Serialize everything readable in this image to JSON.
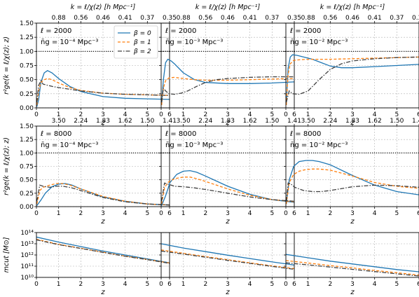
{
  "figure": {
    "top_axis_label": "k = ℓ/χ(z) [h Mpc⁻¹]",
    "row_ylabel_ratio": "r²ge(k = ℓ/χ(z); z)",
    "row_ylabel_mass": "mcut [M⊙]",
    "xlabel": "z",
    "legend": [
      "β = 0",
      "β = 1",
      "β = 2"
    ],
    "colors": {
      "beta0": "#1f77b4",
      "beta1": "#ff7f0e",
      "beta2": "#404040"
    }
  },
  "chart_data": [
    {
      "type": "line",
      "panel": "row1-col1",
      "label_ell": "ℓ = 2000",
      "label_ng": "n̄g = 10⁻⁴ Mpc⁻³",
      "xlim": [
        0,
        6
      ],
      "ylim": [
        0,
        1.5
      ],
      "x_ticks": [
        "0",
        "1",
        "2",
        "3",
        "4",
        "5",
        "6"
      ],
      "y_ticks": [
        "0.00",
        "0.25",
        "0.50",
        "0.75",
        "1.00",
        "1.25",
        "1.50"
      ],
      "top_ticks": [
        "0.88",
        "0.56",
        "0.46",
        "0.41",
        "0.37",
        "0.35"
      ],
      "reference_line": 1.0,
      "grid": true,
      "series": [
        {
          "name": "β = 0",
          "x": [
            0.02,
            0.1,
            0.2,
            0.35,
            0.5,
            0.7,
            1.0,
            1.5,
            2,
            3,
            4,
            5,
            6
          ],
          "y": [
            0.02,
            0.15,
            0.45,
            0.62,
            0.66,
            0.62,
            0.52,
            0.38,
            0.29,
            0.2,
            0.17,
            0.16,
            0.15
          ]
        },
        {
          "name": "β = 1",
          "x": [
            0.02,
            0.1,
            0.2,
            0.35,
            0.5,
            0.7,
            1.0,
            1.5,
            2,
            3,
            4,
            5,
            6
          ],
          "y": [
            0.05,
            0.3,
            0.45,
            0.5,
            0.52,
            0.5,
            0.44,
            0.36,
            0.31,
            0.26,
            0.24,
            0.23,
            0.22
          ]
        },
        {
          "name": "β = 2",
          "x": [
            0.02,
            0.1,
            0.2,
            0.3,
            0.5,
            0.7,
            1.0,
            1.5,
            2,
            3,
            4,
            5,
            6
          ],
          "y": [
            0.1,
            0.4,
            0.48,
            0.42,
            0.4,
            0.38,
            0.36,
            0.33,
            0.3,
            0.26,
            0.24,
            0.23,
            0.22
          ]
        }
      ]
    },
    {
      "type": "line",
      "panel": "row1-col2",
      "label_ell": "ℓ = 2000",
      "label_ng": "n̄g = 10⁻³ Mpc⁻³",
      "xlim": [
        0,
        6
      ],
      "ylim": [
        0,
        1.5
      ],
      "x_ticks": [
        "0",
        "1",
        "2",
        "3",
        "4",
        "5",
        "6"
      ],
      "top_ticks": [
        "0.88",
        "0.56",
        "0.46",
        "0.41",
        "0.37",
        "0.35"
      ],
      "reference_line": 1.0,
      "grid": true,
      "series": [
        {
          "name": "β = 0",
          "x": [
            0.02,
            0.1,
            0.2,
            0.3,
            0.45,
            0.6,
            0.8,
            1.0,
            1.5,
            2,
            3,
            4,
            5,
            6
          ],
          "y": [
            0.05,
            0.5,
            0.8,
            0.86,
            0.83,
            0.78,
            0.7,
            0.62,
            0.5,
            0.45,
            0.43,
            0.43,
            0.44,
            0.46
          ]
        },
        {
          "name": "β = 1",
          "x": [
            0.02,
            0.1,
            0.2,
            0.35,
            0.6,
            1.0,
            1.5,
            2,
            3,
            4,
            5,
            6
          ],
          "y": [
            0.05,
            0.35,
            0.48,
            0.53,
            0.54,
            0.52,
            0.5,
            0.49,
            0.49,
            0.5,
            0.51,
            0.52
          ]
        },
        {
          "name": "β = 2",
          "x": [
            0.02,
            0.1,
            0.2,
            0.35,
            0.6,
            0.9,
            1.2,
            1.6,
            2,
            2.5,
            3,
            4,
            5,
            6
          ],
          "y": [
            0.1,
            0.35,
            0.3,
            0.25,
            0.24,
            0.26,
            0.3,
            0.38,
            0.45,
            0.5,
            0.52,
            0.54,
            0.55,
            0.55
          ]
        }
      ]
    },
    {
      "type": "line",
      "panel": "row1-col3",
      "label_ell": "ℓ = 2000",
      "label_ng": "n̄g = 10⁻² Mpc⁻³",
      "xlim": [
        0,
        6
      ],
      "ylim": [
        0,
        1.5
      ],
      "x_ticks": [
        "0",
        "1",
        "2",
        "3",
        "4",
        "5",
        "6"
      ],
      "top_ticks": [
        "0.88",
        "0.56",
        "0.46",
        "0.41",
        "0.37",
        "0.35"
      ],
      "reference_line": 1.0,
      "grid": true,
      "series": [
        {
          "name": "β = 0",
          "x": [
            0.02,
            0.1,
            0.2,
            0.3,
            0.5,
            0.8,
            1.2,
            1.6,
            2,
            2.5,
            3,
            4,
            5,
            6
          ],
          "y": [
            0.05,
            0.7,
            0.9,
            0.94,
            0.93,
            0.9,
            0.86,
            0.8,
            0.74,
            0.71,
            0.71,
            0.73,
            0.75,
            0.77
          ]
        },
        {
          "name": "β = 1",
          "x": [
            0.02,
            0.1,
            0.2,
            0.35,
            0.6,
            1.0,
            2,
            3,
            4,
            5,
            6
          ],
          "y": [
            0.05,
            0.6,
            0.78,
            0.84,
            0.85,
            0.86,
            0.86,
            0.87,
            0.88,
            0.89,
            0.9
          ]
        },
        {
          "name": "β = 2",
          "x": [
            0.02,
            0.15,
            0.3,
            0.6,
            1.0,
            1.5,
            2,
            2.5,
            3,
            4,
            5,
            6
          ],
          "y": [
            0.1,
            0.3,
            0.25,
            0.24,
            0.3,
            0.5,
            0.68,
            0.78,
            0.83,
            0.87,
            0.89,
            0.9
          ]
        }
      ]
    },
    {
      "type": "line",
      "panel": "row2-col1",
      "label_ell": "ℓ = 8000",
      "label_ng": "n̄g = 10⁻⁴ Mpc⁻³",
      "xlim": [
        0,
        6
      ],
      "ylim": [
        0,
        1.5
      ],
      "x_ticks": [
        "0",
        "1",
        "2",
        "3",
        "4",
        "5",
        "6"
      ],
      "y_ticks": [
        "0.00",
        "0.25",
        "0.50",
        "0.75",
        "1.00",
        "1.25",
        "1.50"
      ],
      "top_ticks": [
        "3.50",
        "2.24",
        "1.83",
        "1.62",
        "1.50",
        "1.41"
      ],
      "reference_line": 1.0,
      "grid": true,
      "series": [
        {
          "name": "β = 0",
          "x": [
            0.02,
            0.2,
            0.4,
            0.7,
            1.0,
            1.3,
            1.6,
            2,
            3,
            4,
            5,
            6
          ],
          "y": [
            0.02,
            0.12,
            0.25,
            0.37,
            0.42,
            0.43,
            0.4,
            0.33,
            0.18,
            0.1,
            0.05,
            0.03
          ]
        },
        {
          "name": "β = 1",
          "x": [
            0.02,
            0.15,
            0.3,
            0.6,
            0.9,
            1.2,
            1.6,
            2,
            3,
            4,
            5,
            6
          ],
          "y": [
            0.05,
            0.3,
            0.36,
            0.4,
            0.43,
            0.43,
            0.39,
            0.33,
            0.19,
            0.1,
            0.05,
            0.03
          ]
        },
        {
          "name": "β = 2",
          "x": [
            0.02,
            0.15,
            0.3,
            0.6,
            0.9,
            1.2,
            1.6,
            2,
            3,
            4,
            5,
            6
          ],
          "y": [
            0.1,
            0.4,
            0.38,
            0.36,
            0.38,
            0.38,
            0.35,
            0.3,
            0.17,
            0.09,
            0.05,
            0.03
          ]
        }
      ]
    },
    {
      "type": "line",
      "panel": "row2-col2",
      "label_ell": "ℓ = 8000",
      "label_ng": "n̄g = 10⁻³ Mpc⁻³",
      "xlim": [
        0,
        6
      ],
      "ylim": [
        0,
        1.5
      ],
      "x_ticks": [
        "0",
        "1",
        "2",
        "3",
        "4",
        "5",
        "6"
      ],
      "top_ticks": [
        "3.50",
        "2.24",
        "1.83",
        "1.62",
        "1.50",
        "1.41"
      ],
      "reference_line": 1.0,
      "grid": true,
      "series": [
        {
          "name": "β = 0",
          "x": [
            0.02,
            0.2,
            0.4,
            0.7,
            1.0,
            1.3,
            1.6,
            2,
            3,
            4,
            5,
            6
          ],
          "y": [
            0.02,
            0.2,
            0.45,
            0.6,
            0.66,
            0.67,
            0.64,
            0.57,
            0.38,
            0.23,
            0.13,
            0.08
          ]
        },
        {
          "name": "β = 1",
          "x": [
            0.02,
            0.15,
            0.3,
            0.6,
            1.0,
            1.3,
            1.6,
            2,
            3,
            4,
            5,
            6
          ],
          "y": [
            0.05,
            0.35,
            0.45,
            0.52,
            0.55,
            0.55,
            0.52,
            0.47,
            0.33,
            0.21,
            0.13,
            0.09
          ]
        },
        {
          "name": "β = 2",
          "x": [
            0.02,
            0.15,
            0.3,
            0.6,
            1.0,
            1.5,
            2,
            3,
            4,
            5,
            6
          ],
          "y": [
            0.1,
            0.44,
            0.42,
            0.38,
            0.37,
            0.35,
            0.32,
            0.25,
            0.18,
            0.13,
            0.1
          ]
        }
      ]
    },
    {
      "type": "line",
      "panel": "row2-col3",
      "label_ell": "ℓ = 8000",
      "label_ng": "n̄g = 10⁻² Mpc⁻³",
      "xlim": [
        0,
        6
      ],
      "ylim": [
        0,
        1.5
      ],
      "x_ticks": [
        "0",
        "1",
        "2",
        "3",
        "4",
        "5",
        "6"
      ],
      "top_ticks": [
        "3.50",
        "2.24",
        "1.83",
        "1.62",
        "1.50",
        "1.41"
      ],
      "reference_line": 1.0,
      "grid": true,
      "series": [
        {
          "name": "β = 0",
          "x": [
            0.02,
            0.15,
            0.35,
            0.6,
            0.9,
            1.2,
            1.5,
            2,
            3,
            4,
            5,
            6
          ],
          "y": [
            0.05,
            0.5,
            0.75,
            0.84,
            0.86,
            0.86,
            0.84,
            0.78,
            0.58,
            0.4,
            0.28,
            0.22
          ]
        },
        {
          "name": "β = 1",
          "x": [
            0.02,
            0.15,
            0.35,
            0.6,
            0.9,
            1.2,
            1.5,
            2,
            3,
            4,
            5,
            6
          ],
          "y": [
            0.05,
            0.45,
            0.6,
            0.66,
            0.69,
            0.7,
            0.7,
            0.68,
            0.57,
            0.45,
            0.38,
            0.34
          ]
        },
        {
          "name": "β = 2",
          "x": [
            0.02,
            0.1,
            0.2,
            0.4,
            0.8,
            1.2,
            1.6,
            2,
            3,
            4,
            5,
            6
          ],
          "y": [
            0.1,
            0.44,
            0.43,
            0.36,
            0.3,
            0.28,
            0.28,
            0.3,
            0.37,
            0.4,
            0.39,
            0.36
          ]
        }
      ]
    },
    {
      "type": "line",
      "panel": "row3-col1",
      "xlim": [
        0,
        6
      ],
      "ylim": [
        10,
        14
      ],
      "yscale": "log10",
      "x_ticks": [
        "0",
        "1",
        "2",
        "3",
        "4",
        "5",
        "6"
      ],
      "y_ticks": [
        "10¹⁰",
        "10¹¹",
        "10¹²",
        "10¹³",
        "10¹⁴"
      ],
      "grid": true,
      "series": [
        {
          "name": "β = 0",
          "x": [
            0,
            1,
            2,
            3,
            4,
            5,
            6
          ],
          "y": [
            13.6,
            13.15,
            12.75,
            12.35,
            12.0,
            11.65,
            11.3
          ]
        },
        {
          "name": "β = 1",
          "x": [
            0,
            1,
            2,
            3,
            4,
            5,
            6
          ],
          "y": [
            13.4,
            12.95,
            12.6,
            12.25,
            11.9,
            11.6,
            11.28
          ]
        },
        {
          "name": "β = 2",
          "x": [
            0,
            1,
            2,
            3,
            4,
            5,
            6
          ],
          "y": [
            13.35,
            12.92,
            12.58,
            12.23,
            11.88,
            11.58,
            11.25
          ]
        }
      ]
    },
    {
      "type": "line",
      "panel": "row3-col2",
      "xlim": [
        0,
        6
      ],
      "ylim": [
        10,
        14
      ],
      "yscale": "log10",
      "x_ticks": [
        "0",
        "1",
        "2",
        "3",
        "4",
        "5",
        "6"
      ],
      "grid": true,
      "series": [
        {
          "name": "β = 0",
          "x": [
            0,
            1,
            2,
            3,
            4,
            5,
            6
          ],
          "y": [
            13.0,
            12.62,
            12.3,
            11.98,
            11.68,
            11.38,
            11.1
          ]
        },
        {
          "name": "β = 1",
          "x": [
            0,
            1,
            2,
            3,
            4,
            5,
            6
          ],
          "y": [
            12.45,
            12.15,
            11.85,
            11.58,
            11.3,
            11.03,
            10.78
          ]
        },
        {
          "name": "β = 2",
          "x": [
            0,
            1,
            2,
            3,
            4,
            5,
            6
          ],
          "y": [
            12.35,
            12.08,
            11.8,
            11.52,
            11.25,
            10.98,
            10.72
          ]
        }
      ]
    },
    {
      "type": "line",
      "panel": "row3-col3",
      "xlim": [
        0,
        6
      ],
      "ylim": [
        10,
        14
      ],
      "yscale": "log10",
      "x_ticks": [
        "0",
        "1",
        "2",
        "3",
        "4",
        "5",
        "6"
      ],
      "grid": true,
      "series": [
        {
          "name": "β = 0",
          "x": [
            0,
            1,
            2,
            3,
            4,
            5,
            6
          ],
          "y": [
            12.05,
            11.75,
            11.45,
            11.2,
            10.95,
            10.7,
            10.5
          ]
        },
        {
          "name": "β = 1",
          "x": [
            0,
            1,
            2,
            3,
            4,
            5,
            6
          ],
          "y": [
            11.5,
            11.28,
            11.05,
            10.85,
            10.62,
            10.42,
            10.2
          ]
        },
        {
          "name": "β = 2",
          "x": [
            0,
            1,
            2,
            3,
            4,
            5,
            6
          ],
          "y": [
            11.3,
            11.12,
            10.92,
            10.72,
            10.52,
            10.32,
            10.12
          ]
        }
      ]
    }
  ]
}
